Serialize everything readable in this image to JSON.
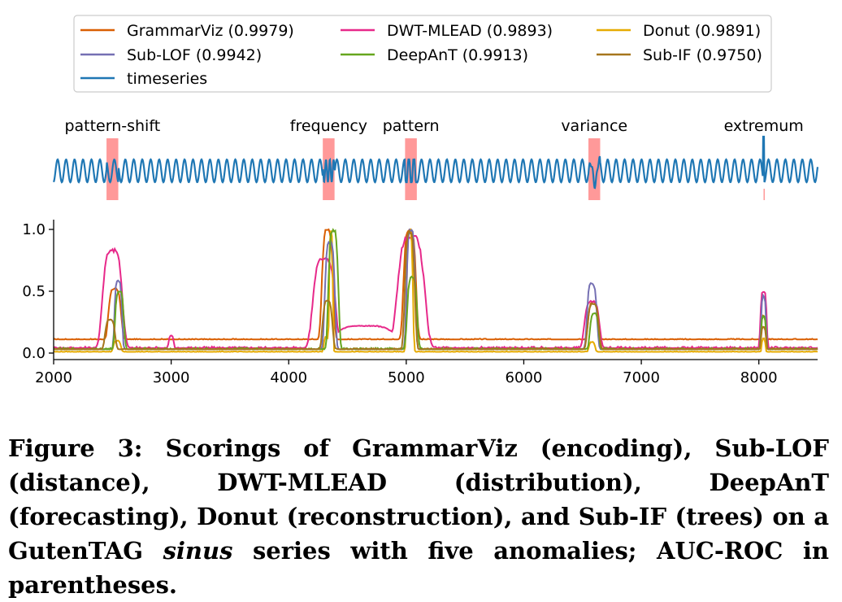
{
  "chart_data": {
    "type": "line",
    "legend": [
      {
        "key": "grammarviz",
        "label": "GrammarViz (0.9979)",
        "color": "#d95f02"
      },
      {
        "key": "dwtmlead",
        "label": "DWT-MLEAD (0.9893)",
        "color": "#e7298a"
      },
      {
        "key": "donut",
        "label": "Donut (0.9891)",
        "color": "#e6ab02"
      },
      {
        "key": "sublof",
        "label": "Sub-LOF (0.9942)",
        "color": "#7570b3"
      },
      {
        "key": "deepant",
        "label": "DeepAnT (0.9913)",
        "color": "#66a61e"
      },
      {
        "key": "subif",
        "label": "Sub-IF (0.9750)",
        "color": "#a6761d"
      },
      {
        "key": "timeseries",
        "label": "timeseries",
        "color": "#1f77b4"
      }
    ],
    "timeseries_panel": {
      "series_color": "#1f77b4",
      "anomaly_color": "#ff8080",
      "anomalies": [
        {
          "label": "pattern-shift",
          "start": 2450,
          "end": 2550
        },
        {
          "label": "frequency",
          "start": 4290,
          "end": 4390
        },
        {
          "label": "pattern",
          "start": 4990,
          "end": 5090
        },
        {
          "label": "variance",
          "start": 6550,
          "end": 6650
        },
        {
          "label": "extremum",
          "start": 8040,
          "end": 8043
        }
      ]
    },
    "xlim": [
      2000,
      8500
    ],
    "ylim": [
      -0.05,
      1.05
    ],
    "x_ticks": [
      2000,
      3000,
      4000,
      5000,
      6000,
      7000,
      8000
    ],
    "x_tick_labels": [
      "2000",
      "3000",
      "4000",
      "5000",
      "6000",
      "7000",
      "8000"
    ],
    "y_ticks": [
      0.0,
      0.5,
      1.0
    ],
    "y_tick_labels": [
      "0.0",
      "0.5",
      "1.0"
    ],
    "series": [
      {
        "name": "GrammarViz (0.9979)",
        "key": "grammarviz",
        "color": "#d95f02",
        "baseline": 0.11,
        "noise": 0.006,
        "bumps": [
          [
            2520,
            50,
            0.41
          ],
          [
            4330,
            45,
            0.89
          ],
          [
            5030,
            50,
            0.89
          ],
          [
            6590,
            40,
            0.3
          ],
          [
            8040,
            20,
            0.19
          ]
        ]
      },
      {
        "name": "DWT-MLEAD (0.9893)",
        "key": "dwtmlead",
        "color": "#e7298a",
        "baseline": 0.04,
        "noise": 0.012,
        "bumps": [
          [
            2500,
            80,
            0.79
          ],
          [
            3000,
            20,
            0.1
          ],
          [
            4300,
            90,
            0.72
          ],
          [
            4650,
            260,
            0.18
          ],
          [
            5040,
            110,
            0.9
          ],
          [
            6580,
            60,
            0.38
          ],
          [
            8040,
            25,
            0.46
          ]
        ]
      },
      {
        "name": "Donut (0.9891)",
        "key": "donut",
        "color": "#e6ab02",
        "baseline": 0.01,
        "noise": 0.004,
        "bumps": [
          [
            2540,
            30,
            0.09
          ],
          [
            4320,
            20,
            0.12
          ],
          [
            4360,
            15,
            0.99
          ],
          [
            5030,
            25,
            0.98
          ],
          [
            6580,
            25,
            0.08
          ],
          [
            8040,
            15,
            0.11
          ]
        ]
      },
      {
        "name": "Sub-LOF (0.9942)",
        "key": "sublof",
        "color": "#7570b3",
        "baseline": 0.03,
        "noise": 0.005,
        "bumps": [
          [
            2550,
            30,
            0.56
          ],
          [
            4350,
            40,
            0.86
          ],
          [
            5040,
            35,
            0.96
          ],
          [
            6580,
            40,
            0.53
          ],
          [
            8040,
            20,
            0.43
          ]
        ]
      },
      {
        "name": "DeepAnT (0.9913)",
        "key": "deepant",
        "color": "#66a61e",
        "baseline": 0.03,
        "noise": 0.012,
        "bumps": [
          [
            2560,
            35,
            0.47
          ],
          [
            4380,
            40,
            0.96
          ],
          [
            5050,
            40,
            0.58
          ],
          [
            6600,
            35,
            0.29
          ],
          [
            8040,
            20,
            0.27
          ]
        ]
      },
      {
        "name": "Sub-IF (0.9750)",
        "key": "subif",
        "color": "#a6761d",
        "baseline": 0.03,
        "noise": 0.008,
        "bumps": [
          [
            2480,
            40,
            0.24
          ],
          [
            4330,
            40,
            0.39
          ],
          [
            5030,
            40,
            0.95
          ],
          [
            6590,
            45,
            0.37
          ],
          [
            8040,
            20,
            0.18
          ]
        ]
      }
    ]
  },
  "caption": {
    "before_italic": "Figure 3: Scorings of GrammarViz (encoding), Sub-LOF (distance), DWT-MLEAD (distribution), DeepAnT (forecasting), Donut (reconstruction), and Sub-IF (trees) on a GutenTAG",
    "italic_word": "sinus",
    "after_italic": " series with five anomalies; AUC-ROC in parentheses."
  }
}
